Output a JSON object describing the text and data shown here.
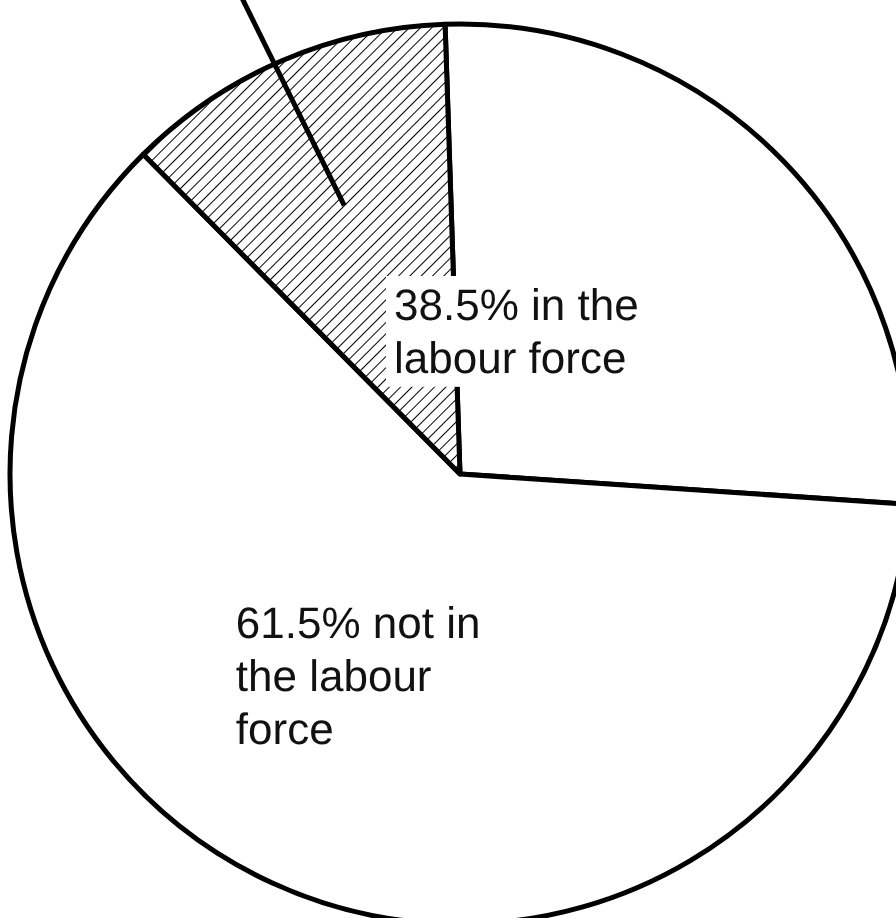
{
  "chart_data": {
    "type": "pie",
    "categories": [
      null,
      "61.5% not in the labour force",
      null
    ],
    "values": [
      26.6,
      61.5,
      11.9
    ],
    "colors": [
      "#ffffff",
      "#ffffff",
      "#000000"
    ],
    "annotations": [
      "38.5% in the labour force"
    ]
  }
}
